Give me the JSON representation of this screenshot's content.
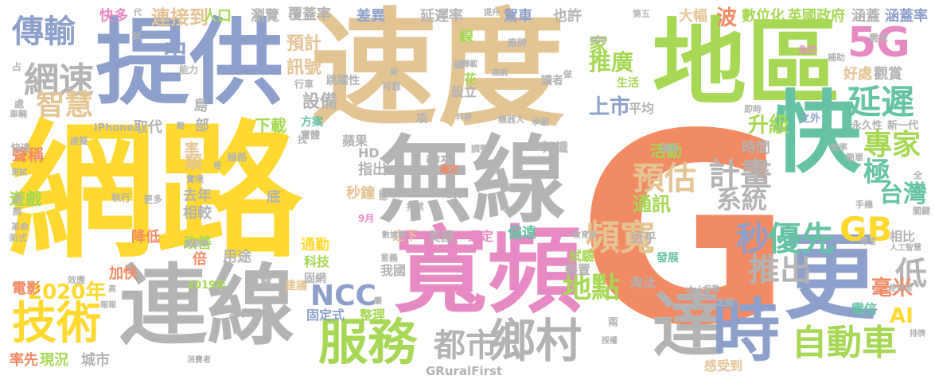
{
  "palette": {
    "orange": "#f28b64",
    "yellow": "#ffd92f",
    "gray": "#b3b3b3",
    "green": "#a6d854",
    "blue": "#8da0cb",
    "pink": "#e78ac3",
    "teal": "#66c2a5",
    "tan": "#e5c494"
  },
  "words": [
    {
      "text": "G",
      "color": "#f28b64"
    },
    {
      "text": "網路",
      "color": "#ffd92f"
    },
    {
      "text": "速度",
      "color": "#e5c494"
    },
    {
      "text": "提供",
      "color": "#8da0cb"
    },
    {
      "text": "地區",
      "color": "#a6d854"
    },
    {
      "text": "無線",
      "color": "#b3b3b3"
    },
    {
      "text": "寬頻",
      "color": "#e78ac3"
    },
    {
      "text": "連線",
      "color": "#b3b3b3"
    },
    {
      "text": "快",
      "color": "#66c2a5"
    },
    {
      "text": "更",
      "color": "#8da0cb"
    },
    {
      "text": "達",
      "color": "#b3b3b3"
    },
    {
      "text": "時",
      "color": "#8da0cb"
    },
    {
      "text": "服務",
      "color": "#a6d854"
    },
    {
      "text": "鄉村",
      "color": "#b3b3b3"
    },
    {
      "text": "都市",
      "color": "#b3b3b3"
    },
    {
      "text": "技術",
      "color": "#ffd92f"
    },
    {
      "text": "自動車",
      "color": "#a6d854"
    },
    {
      "text": "傳輸",
      "color": "#8da0cb"
    },
    {
      "text": "網速",
      "color": "#b3b3b3"
    },
    {
      "text": "智慧",
      "color": "#e5c494"
    },
    {
      "text": "5G",
      "color": "#e78ac3"
    },
    {
      "text": "延遲",
      "color": "#66c2a5"
    },
    {
      "text": "頻寬",
      "color": "#e5c494"
    },
    {
      "text": "預估",
      "color": "#e5c494"
    },
    {
      "text": "計畫",
      "color": "#b3b3b3"
    },
    {
      "text": "秒",
      "color": "#8da0cb"
    },
    {
      "text": "優先",
      "color": "#66c2a5"
    },
    {
      "text": "GB",
      "color": "#ffd92f"
    },
    {
      "text": "NCC",
      "color": "#8da0cb"
    },
    {
      "text": "推出",
      "color": "#b3b3b3"
    },
    {
      "text": "低",
      "color": "#b3b3b3"
    },
    {
      "text": "地點",
      "color": "#a6d854"
    },
    {
      "text": "專家",
      "color": "#a6d854"
    },
    {
      "text": "台灣",
      "color": "#66c2a5"
    },
    {
      "text": "系統",
      "color": "#b3b3b3"
    },
    {
      "text": "極",
      "color": "#66c2a5"
    },
    {
      "text": "升級",
      "color": "#a6d854"
    },
    {
      "text": "推廣",
      "color": "#a6d854"
    },
    {
      "text": "上市",
      "color": "#8da0cb"
    },
    {
      "text": "波",
      "color": "#f28b64"
    },
    {
      "text": "毫米",
      "color": "#f28b64"
    },
    {
      "text": "AI",
      "color": "#ffd92f"
    },
    {
      "text": "2020年",
      "color": "#ffd92f"
    },
    {
      "text": "連接到",
      "color": "#e5c494"
    },
    {
      "text": "中",
      "color": "#8da0cb"
    },
    {
      "text": "預計",
      "color": "#e5c494"
    },
    {
      "text": "訊號",
      "color": "#e5c494"
    },
    {
      "text": "設備",
      "color": "#b3b3b3"
    },
    {
      "text": "家",
      "color": "#a6d854"
    },
    {
      "text": "通訊",
      "color": "#a6d854"
    },
    {
      "text": "下載",
      "color": "#a6d854"
    },
    {
      "text": "快多",
      "color": "#e78ac3"
    },
    {
      "text": "人口",
      "color": "#a6d854"
    },
    {
      "text": "瀏覽",
      "color": "#b3b3b3"
    },
    {
      "text": "覆蓋率",
      "color": "#b3b3b3"
    },
    {
      "text": "差異",
      "color": "#8da0cb"
    },
    {
      "text": "延遲率",
      "color": "#b3b3b3"
    },
    {
      "text": "駕車",
      "color": "#8da0cb"
    },
    {
      "text": "也許",
      "color": "#b3b3b3"
    },
    {
      "text": "大幅",
      "color": "#e5c494"
    },
    {
      "text": "數位化",
      "color": "#a6d854"
    },
    {
      "text": "英國政府",
      "color": "#a6d854"
    },
    {
      "text": "涵蓋",
      "color": "#b3b3b3"
    },
    {
      "text": "涵蓋率",
      "color": "#8da0cb"
    },
    {
      "text": "好處",
      "color": "#e5c494"
    },
    {
      "text": "觀賞",
      "color": "#b3b3b3"
    },
    {
      "text": "聲稱",
      "color": "#f28b64"
    },
    {
      "text": "遊戲",
      "color": "#a6d854"
    },
    {
      "text": "電影",
      "color": "#f28b64"
    },
    {
      "text": "率先",
      "color": "#f28b64"
    },
    {
      "text": "現況",
      "color": "#a6d854"
    },
    {
      "text": "城市",
      "color": "#b3b3b3"
    },
    {
      "text": "加快",
      "color": "#f28b64"
    },
    {
      "text": "降低",
      "color": "#f28b64"
    },
    {
      "text": "改善",
      "color": "#a6d854"
    },
    {
      "text": "倍",
      "color": "#f28b64"
    },
    {
      "text": "用途",
      "color": "#b3b3b3"
    },
    {
      "text": "通勤",
      "color": "#ffd92f"
    },
    {
      "text": "科技",
      "color": "#a6d854"
    },
    {
      "text": "去年",
      "color": "#b3b3b3"
    },
    {
      "text": "相較",
      "color": "#b3b3b3"
    },
    {
      "text": "類",
      "color": "#e5c494"
    },
    {
      "text": "率",
      "color": "#e5c494"
    },
    {
      "text": "部",
      "color": "#b3b3b3"
    },
    {
      "text": "島",
      "color": "#b3b3b3"
    },
    {
      "text": "底",
      "color": "#b3b3b3"
    },
    {
      "text": "取代",
      "color": "#b3b3b3"
    },
    {
      "text": "指出",
      "color": "#b3b3b3"
    },
    {
      "text": "秒鐘",
      "color": "#e5c494"
    },
    {
      "text": "HD",
      "color": "#b3b3b3"
    },
    {
      "text": "蘋果",
      "color": "#b3b3b3"
    },
    {
      "text": "帶來",
      "color": "#b3b3b3"
    },
    {
      "text": "知識",
      "color": "#b3b3b3"
    },
    {
      "text": "活動",
      "color": "#a6d854"
    },
    {
      "text": "時間",
      "color": "#b3b3b3"
    },
    {
      "text": "英國",
      "color": "#b3b3b3"
    },
    {
      "text": "選定",
      "color": "#e78ac3"
    },
    {
      "text": "偏遠",
      "color": "#66c2a5"
    },
    {
      "text": "之下",
      "color": "#e5c494"
    },
    {
      "text": "試驗",
      "color": "#a6d854"
    },
    {
      "text": "裝置",
      "color": "#b3b3b3"
    },
    {
      "text": "我國",
      "color": "#b3b3b3"
    },
    {
      "text": "覆蓋",
      "color": "#b3b3b3"
    },
    {
      "text": "固定式",
      "color": "#8da0cb"
    },
    {
      "text": "整理",
      "color": "#a6d854"
    },
    {
      "text": "淘汰",
      "color": "#b3b3b3"
    },
    {
      "text": "支持",
      "color": "#b3b3b3"
    },
    {
      "text": "感受到",
      "color": "#e5c494"
    },
    {
      "text": "電信",
      "color": "#66c2a5"
    },
    {
      "text": "相比",
      "color": "#b3b3b3"
    },
    {
      "text": "發展",
      "color": "#66c2a5"
    },
    {
      "text": "近乎",
      "color": "#b3b3b3"
    },
    {
      "text": "平均",
      "color": "#b3b3b3"
    },
    {
      "text": "生活",
      "color": "#a6d854"
    },
    {
      "text": "讀者",
      "color": "#b3b3b3"
    },
    {
      "text": "設立",
      "color": "#b3b3b3"
    },
    {
      "text": "花",
      "color": "#a6d854"
    },
    {
      "text": "線",
      "color": "#a6d854"
    },
    {
      "text": "方案",
      "color": "#66c2a5"
    },
    {
      "text": "實體",
      "color": "#b3b3b3"
    },
    {
      "text": "能力",
      "color": "#b3b3b3"
    },
    {
      "text": "GRuralFirst",
      "color": "#b3b3b3"
    },
    {
      "text": "2019年",
      "color": "#a6d854"
    },
    {
      "text": "iPhone",
      "color": "#b3b3b3"
    },
    {
      "text": "永久性",
      "color": "#b3b3b3"
    },
    {
      "text": "新一代",
      "color": "#b3b3b3"
    },
    {
      "text": "之外",
      "color": "#8da0cb"
    },
    {
      "text": "第五",
      "color": "#b3b3b3"
    },
    {
      "text": "需求",
      "color": "#b3b3b3"
    },
    {
      "text": "補助",
      "color": "#b3b3b3"
    },
    {
      "text": "免於",
      "color": "#e78ac3"
    },
    {
      "text": "廠牌",
      "color": "#b3b3b3"
    },
    {
      "text": "採用",
      "color": "#b3b3b3"
    },
    {
      "text": "傳言",
      "color": "#b3b3b3"
    },
    {
      "text": "人工智慧",
      "color": "#b3b3b3"
    },
    {
      "text": "排擠",
      "color": "#b3b3b3"
    },
    {
      "text": "使用者",
      "color": "#b3b3b3"
    },
    {
      "text": "教育部",
      "color": "#b3b3b3"
    },
    {
      "text": "數據機",
      "color": "#b3b3b3"
    },
    {
      "text": "建議",
      "color": "#e5c494"
    },
    {
      "text": "本文",
      "color": "#b3b3b3"
    },
    {
      "text": "消費者",
      "color": "#b3b3b3"
    },
    {
      "text": "授權",
      "color": "#b3b3b3"
    },
    {
      "text": "兩",
      "color": "#b3b3b3"
    },
    {
      "text": "執行",
      "color": "#b3b3b3"
    },
    {
      "text": "更多",
      "color": "#b3b3b3"
    },
    {
      "text": "9月",
      "color": "#e78ac3"
    },
    {
      "text": "路況",
      "color": "#b3b3b3"
    },
    {
      "text": "穩定",
      "color": "#f28b64"
    },
    {
      "text": "跳躍性",
      "color": "#b3b3b3"
    },
    {
      "text": "轉載",
      "color": "#b3b3b3"
    },
    {
      "text": "高網",
      "color": "#b3b3b3"
    },
    {
      "text": "機器人",
      "color": "#b3b3b3"
    },
    {
      "text": "承載",
      "color": "#b3b3b3"
    },
    {
      "text": "一齊",
      "color": "#b3b3b3"
    },
    {
      "text": "調整",
      "color": "#b3b3b3"
    },
    {
      "text": "科普",
      "color": "#b3b3b3"
    },
    {
      "text": "項",
      "color": "#b3b3b3"
    },
    {
      "text": "可靠",
      "color": "#b3b3b3"
    },
    {
      "text": "行車",
      "color": "#b3b3b3"
    },
    {
      "text": "新",
      "color": "#b3b3b3"
    },
    {
      "text": "做",
      "color": "#b3b3b3"
    },
    {
      "text": "提升",
      "color": "#b3b3b3"
    },
    {
      "text": "試",
      "color": "#b3b3b3"
    },
    {
      "text": "代",
      "color": "#b3b3b3"
    },
    {
      "text": "占",
      "color": "#b3b3b3"
    },
    {
      "text": "處",
      "color": "#b3b3b3"
    },
    {
      "text": "車輛",
      "color": "#b3b3b3"
    },
    {
      "text": "快速",
      "color": "#b3b3b3"
    },
    {
      "text": "虛擬",
      "color": "#b3b3b3"
    },
    {
      "text": "測試",
      "color": "#b3b3b3"
    },
    {
      "text": "速",
      "color": "#b3b3b3"
    },
    {
      "text": "顏",
      "color": "#b3b3b3"
    },
    {
      "text": "革命",
      "color": "#b3b3b3"
    },
    {
      "text": "新式",
      "color": "#b3b3b3"
    },
    {
      "text": "效應",
      "color": "#b3b3b3"
    },
    {
      "text": "報報",
      "color": "#b3b3b3"
    },
    {
      "text": "高",
      "color": "#b3b3b3"
    },
    {
      "text": "駕駛車",
      "color": "#b3b3b3"
    },
    {
      "text": "實境",
      "color": "#b3b3b3"
    },
    {
      "text": "難",
      "color": "#b3b3b3"
    },
    {
      "text": "裡",
      "color": "#b3b3b3"
    },
    {
      "text": "找",
      "color": "#b3b3b3"
    },
    {
      "text": "固網",
      "color": "#b3b3b3"
    },
    {
      "text": "線路",
      "color": "#b3b3b3"
    },
    {
      "text": "遠",
      "color": "#b3b3b3"
    },
    {
      "text": "意義",
      "color": "#b3b3b3"
    },
    {
      "text": "總",
      "color": "#b3b3b3"
    },
    {
      "text": "手機",
      "color": "#b3b3b3"
    },
    {
      "text": "關鍵",
      "color": "#b3b3b3"
    },
    {
      "text": "全",
      "color": "#b3b3b3"
    },
    {
      "text": "簡單",
      "color": "#b3b3b3"
    },
    {
      "text": "效率",
      "color": "#b3b3b3"
    },
    {
      "text": "即時",
      "color": "#b3b3b3"
    },
    {
      "text": "連接",
      "color": "#b3b3b3"
    },
    {
      "text": "自動",
      "color": "#b3b3b3"
    },
    {
      "text": "之間",
      "color": "#b3b3b3"
    },
    {
      "text": "鑾",
      "color": "#b3b3b3"
    },
    {
      "text": "拖累",
      "color": "#b3b3b3"
    },
    {
      "text": "提近",
      "color": "#b3b3b3"
    }
  ]
}
